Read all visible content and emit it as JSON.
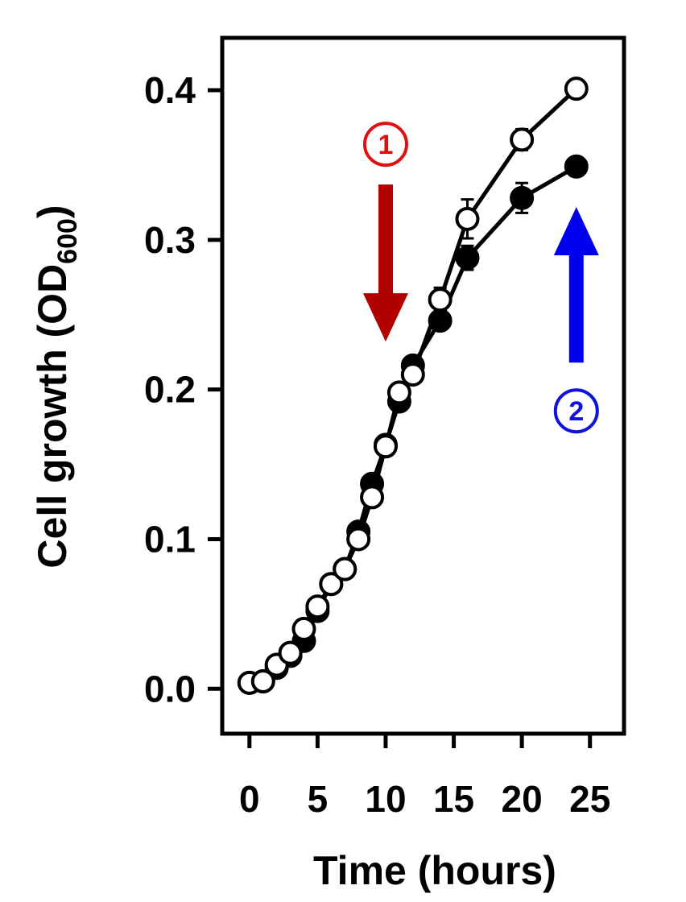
{
  "chart_data": {
    "type": "line",
    "xlabel": "Time (hours)",
    "ylabel": {
      "main": "Cell growth (OD",
      "subscript": "600",
      "close": ")"
    },
    "xlim": [
      -2,
      27.5
    ],
    "ylim": [
      -0.03,
      0.435
    ],
    "xticks": [
      0,
      5,
      10,
      15,
      20,
      25
    ],
    "xtick_labels": [
      "0",
      "5",
      "10",
      "15",
      "20",
      "25"
    ],
    "yticks": [
      0.0,
      0.1,
      0.2,
      0.3,
      0.4
    ],
    "ytick_labels": [
      "0.0",
      "0.1",
      "0.2",
      "0.3",
      "0.4"
    ],
    "grid": false,
    "series": [
      {
        "marker": "filled-circle",
        "color": "#000000",
        "x": [
          0,
          1,
          2,
          3,
          4,
          5,
          6,
          7,
          8,
          9,
          10,
          11,
          12,
          14,
          16,
          20,
          24
        ],
        "y": [
          0.004,
          0.005,
          0.014,
          0.022,
          0.032,
          0.052,
          0.07,
          0.08,
          0.105,
          0.137,
          0.163,
          0.192,
          0.216,
          0.246,
          0.288,
          0.328,
          0.349
        ],
        "error": [
          0.003,
          0.003,
          0.003,
          0.003,
          0.004,
          0.004,
          0.004,
          0.004,
          0.005,
          0.005,
          0.005,
          0.005,
          0.006,
          0.006,
          0.008,
          0.01,
          0.006
        ]
      },
      {
        "marker": "open-circle",
        "color": "#000000",
        "x": [
          0,
          1,
          2,
          3,
          4,
          5,
          6,
          7,
          8,
          9,
          10,
          11,
          12,
          14,
          16,
          20,
          24
        ],
        "y": [
          0.004,
          0.005,
          0.016,
          0.024,
          0.04,
          0.055,
          0.07,
          0.08,
          0.1,
          0.128,
          0.162,
          0.198,
          0.21,
          0.26,
          0.314,
          0.367,
          0.401
        ],
        "error": [
          0.003,
          0.003,
          0.003,
          0.003,
          0.004,
          0.004,
          0.004,
          0.004,
          0.005,
          0.005,
          0.005,
          0.005,
          0.006,
          0.008,
          0.013,
          0.007,
          0.005
        ]
      }
    ],
    "annotations": [
      {
        "label": "1",
        "color": "#dd1111",
        "arrow_color": "#b00000",
        "direction": "down",
        "x": 10,
        "y_tip": 0.232,
        "y_tail": 0.337
      },
      {
        "label": "2",
        "color": "#1111dd",
        "arrow_color": "#0000ee",
        "direction": "up",
        "x": 24,
        "y_tip": 0.322,
        "y_tail": 0.218
      }
    ]
  }
}
